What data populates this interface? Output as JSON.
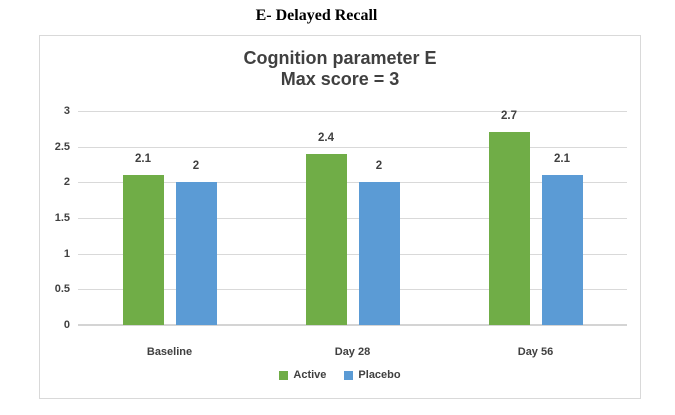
{
  "page_title": "E- Delayed Recall",
  "chart": {
    "title_line1": "Cognition parameter E",
    "title_line2": "Max score = 3"
  },
  "chart_data": {
    "type": "bar",
    "title": "Cognition parameter E",
    "subtitle": "Max score = 3",
    "categories": [
      "Baseline",
      "Day 28",
      "Day 56"
    ],
    "series": [
      {
        "name": "Active",
        "color": "#70AD47",
        "values": [
          2.1,
          2.4,
          2.7
        ]
      },
      {
        "name": "Placebo",
        "color": "#5B9BD5",
        "values": [
          2,
          2,
          2.1
        ]
      }
    ],
    "ylim": [
      0,
      3
    ],
    "yticks": [
      0,
      0.5,
      1,
      1.5,
      2,
      2.5,
      3
    ],
    "grid": true,
    "data_labels": true,
    "legend_position": "bottom",
    "colors": {
      "gridline": "#D9D9D9",
      "axis_line": "#D4D4D4",
      "text": "#404040",
      "frame_border": "#D9D9D9"
    }
  }
}
